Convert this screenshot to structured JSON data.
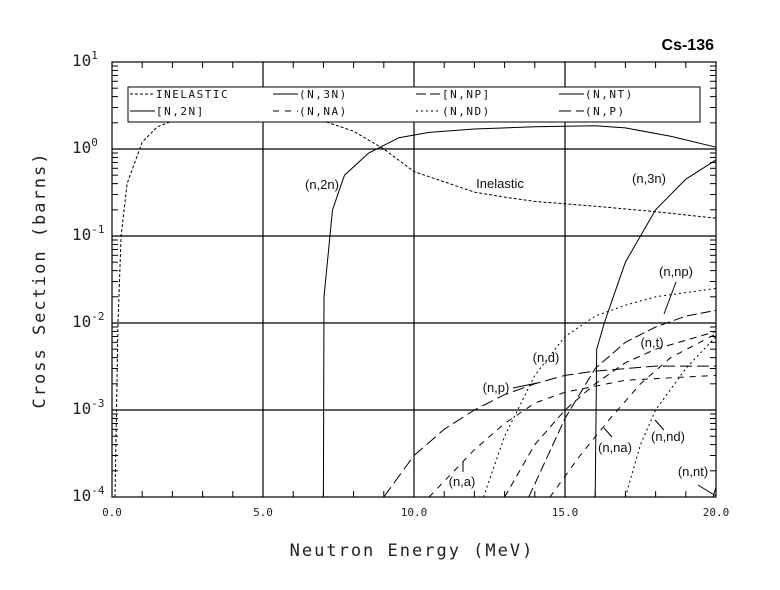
{
  "chart_data": {
    "type": "line",
    "title": "Cs-136",
    "xlabel": "Neutron Energy (MeV)",
    "ylabel": "Cross Section (barns)",
    "xlim": [
      0,
      20
    ],
    "ylim": [
      0.0001,
      10
    ],
    "yscale": "log",
    "grid": true,
    "legend_position": "top",
    "x_ticks": [
      "0.0",
      "5.0",
      "10.0",
      "15.0",
      "20.0"
    ],
    "y_ticks": [
      {
        "base": "10",
        "exp": "1"
      },
      {
        "base": "10",
        "exp": "0"
      },
      {
        "base": "10",
        "exp": "-1"
      },
      {
        "base": "10",
        "exp": "-2"
      },
      {
        "base": "10",
        "exp": "-3"
      },
      {
        "base": "10",
        "exp": "-4"
      }
    ],
    "legend": [
      "INELASTIC",
      "(N,3N)",
      "[N,NP]",
      "(N,NT)",
      "[N,2N]",
      "(N,NA)",
      "(N,ND)",
      "(N,P)"
    ],
    "series": [
      {
        "name": "Inelastic",
        "legend": "INELASTIC",
        "dash": "3,2",
        "points": [
          [
            0.1,
            0.0001
          ],
          [
            0.2,
            0.01
          ],
          [
            0.3,
            0.1
          ],
          [
            0.5,
            0.4
          ],
          [
            1,
            1.2
          ],
          [
            1.5,
            1.8
          ],
          [
            2,
            2.1
          ],
          [
            3,
            2.2
          ],
          [
            5,
            2.2
          ],
          [
            7,
            2.1
          ],
          [
            8,
            1.6
          ],
          [
            9,
            1.0
          ],
          [
            10,
            0.55
          ],
          [
            11,
            0.42
          ],
          [
            12,
            0.32
          ],
          [
            13,
            0.28
          ],
          [
            14,
            0.25
          ],
          [
            16,
            0.22
          ],
          [
            18,
            0.19
          ],
          [
            20,
            0.16
          ]
        ]
      },
      {
        "name": "(n,2n)",
        "legend": "[N,2N]",
        "dash": "",
        "points": [
          [
            7.0,
            0.0001
          ],
          [
            7.02,
            0.02
          ],
          [
            7.3,
            0.2
          ],
          [
            7.7,
            0.5
          ],
          [
            8.5,
            0.9
          ],
          [
            9.5,
            1.35
          ],
          [
            10.5,
            1.55
          ],
          [
            12,
            1.7
          ],
          [
            14,
            1.8
          ],
          [
            16,
            1.85
          ],
          [
            17,
            1.75
          ],
          [
            18.5,
            1.4
          ],
          [
            20,
            1.05
          ]
        ]
      },
      {
        "name": "(n,3n)",
        "legend": "(N,3N)",
        "dash": "",
        "points": [
          [
            16.0,
            0.0001
          ],
          [
            16.05,
            0.005
          ],
          [
            16.3,
            0.01
          ],
          [
            16.6,
            0.02
          ],
          [
            17,
            0.05
          ],
          [
            17.5,
            0.1
          ],
          [
            18,
            0.2
          ],
          [
            19,
            0.45
          ],
          [
            20,
            0.75
          ]
        ]
      },
      {
        "name": "(n,d)",
        "legend": "(N,ND)",
        "dash": "2,3",
        "points": [
          [
            12.3,
            0.0001
          ],
          [
            13,
            0.0005
          ],
          [
            14,
            0.0025
          ],
          [
            15,
            0.007
          ],
          [
            16,
            0.012
          ],
          [
            17,
            0.016
          ],
          [
            18,
            0.02
          ],
          [
            20,
            0.025
          ]
        ]
      },
      {
        "name": "(n,np)",
        "legend": "[N,NP]",
        "dash": "10,4",
        "points": [
          [
            13.8,
            0.0001
          ],
          [
            15,
            0.0008
          ],
          [
            16,
            0.003
          ],
          [
            17,
            0.006
          ],
          [
            18,
            0.009
          ],
          [
            19,
            0.012
          ],
          [
            20,
            0.014
          ]
        ]
      },
      {
        "name": "(n,p)",
        "legend": "(N,P)",
        "dash": "12,5",
        "points": [
          [
            9,
            0.0001
          ],
          [
            10,
            0.0003
          ],
          [
            11,
            0.0006
          ],
          [
            12,
            0.001
          ],
          [
            13,
            0.0015
          ],
          [
            14,
            0.002
          ],
          [
            15,
            0.0025
          ],
          [
            16,
            0.0028
          ],
          [
            18,
            0.0032
          ],
          [
            20,
            0.0032
          ]
        ]
      },
      {
        "name": "(n,a)",
        "legend": "(N,NA)",
        "dash": "6,6",
        "points": [
          [
            10.5,
            0.0001
          ],
          [
            12,
            0.00035
          ],
          [
            13,
            0.0007
          ],
          [
            14,
            0.0012
          ],
          [
            15,
            0.0016
          ],
          [
            17,
            0.0022
          ],
          [
            20,
            0.0025
          ]
        ]
      },
      {
        "name": "(n,t)",
        "legend": "(N,NA)",
        "dash": "7,5",
        "points": [
          [
            13,
            0.0001
          ],
          [
            14,
            0.0004
          ],
          [
            15,
            0.001
          ],
          [
            16,
            0.002
          ],
          [
            17,
            0.0035
          ],
          [
            18,
            0.005
          ],
          [
            20,
            0.008
          ]
        ]
      },
      {
        "name": "(n,na)",
        "legend": "(N,NA)",
        "dash": "6,6",
        "points": [
          [
            14.5,
            0.0001
          ],
          [
            15.5,
            0.0003
          ],
          [
            16.5,
            0.0008
          ],
          [
            17.5,
            0.002
          ],
          [
            18.5,
            0.004
          ],
          [
            20,
            0.0075
          ]
        ]
      },
      {
        "name": "(n,nd)",
        "legend": "(N,ND)",
        "dash": "2,3",
        "points": [
          [
            17,
            0.0001
          ],
          [
            17.5,
            0.0004
          ],
          [
            18,
            0.001
          ],
          [
            19,
            0.003
          ],
          [
            20,
            0.007
          ]
        ]
      },
      {
        "name": "(n,nt)",
        "legend": "(N,NT)",
        "dash": "",
        "points": [
          [
            19.9,
            0.0001
          ],
          [
            20,
            0.00013
          ]
        ]
      }
    ],
    "annotations": [
      "(n,2n)",
      "Inelastic",
      "(n,3n)",
      "(n,np)",
      "(n,t)",
      "(n,d)",
      "(n,p)",
      "(n,na)",
      "(n,nd)",
      "(n,a)",
      "(n,nt)"
    ]
  }
}
